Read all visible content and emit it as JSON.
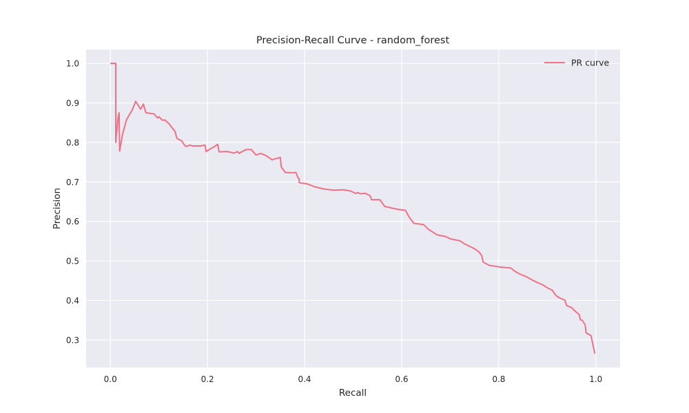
{
  "chart_data": {
    "type": "line",
    "title": "Precision-Recall Curve - random_forest",
    "xlabel": "Recall",
    "ylabel": "Precision",
    "xlim": [
      -0.05,
      1.05
    ],
    "ylim": [
      0.23,
      1.035
    ],
    "xticks": [
      0.0,
      0.2,
      0.4,
      0.6,
      0.8,
      1.0
    ],
    "xtick_labels": [
      "0.0",
      "0.2",
      "0.4",
      "0.6",
      "0.8",
      "1.0"
    ],
    "yticks": [
      0.3,
      0.4,
      0.5,
      0.6,
      0.7,
      0.8,
      0.9,
      1.0
    ],
    "ytick_labels": [
      "0.3",
      "0.4",
      "0.5",
      "0.6",
      "0.7",
      "0.8",
      "0.9",
      "1.0"
    ],
    "grid": true,
    "legend_position": "top-right",
    "colors": {
      "background": "#eaeaf2",
      "grid": "#ffffff",
      "line": "#f07085"
    },
    "series": [
      {
        "name": "PR curve",
        "color": "#f07085",
        "points": [
          [
            0.0,
            1.0
          ],
          [
            0.011,
            1.0
          ],
          [
            0.011,
            0.8
          ],
          [
            0.016,
            0.865
          ],
          [
            0.018,
            0.875
          ],
          [
            0.019,
            0.778
          ],
          [
            0.025,
            0.82
          ],
          [
            0.033,
            0.857
          ],
          [
            0.04,
            0.872
          ],
          [
            0.045,
            0.882
          ],
          [
            0.052,
            0.904
          ],
          [
            0.058,
            0.893
          ],
          [
            0.062,
            0.884
          ],
          [
            0.068,
            0.897
          ],
          [
            0.073,
            0.875
          ],
          [
            0.09,
            0.872
          ],
          [
            0.097,
            0.862
          ],
          [
            0.1,
            0.865
          ],
          [
            0.107,
            0.856
          ],
          [
            0.112,
            0.857
          ],
          [
            0.12,
            0.848
          ],
          [
            0.133,
            0.828
          ],
          [
            0.137,
            0.81
          ],
          [
            0.147,
            0.804
          ],
          [
            0.153,
            0.792
          ],
          [
            0.158,
            0.79
          ],
          [
            0.163,
            0.793
          ],
          [
            0.17,
            0.791
          ],
          [
            0.185,
            0.791
          ],
          [
            0.195,
            0.793
          ],
          [
            0.197,
            0.777
          ],
          [
            0.206,
            0.784
          ],
          [
            0.215,
            0.79
          ],
          [
            0.221,
            0.795
          ],
          [
            0.224,
            0.776
          ],
          [
            0.24,
            0.777
          ],
          [
            0.255,
            0.773
          ],
          [
            0.262,
            0.777
          ],
          [
            0.265,
            0.772
          ],
          [
            0.27,
            0.776
          ],
          [
            0.28,
            0.782
          ],
          [
            0.29,
            0.782
          ],
          [
            0.3,
            0.768
          ],
          [
            0.31,
            0.772
          ],
          [
            0.32,
            0.767
          ],
          [
            0.333,
            0.756
          ],
          [
            0.35,
            0.762
          ],
          [
            0.352,
            0.738
          ],
          [
            0.36,
            0.724
          ],
          [
            0.375,
            0.723
          ],
          [
            0.382,
            0.724
          ],
          [
            0.387,
            0.709
          ],
          [
            0.389,
            0.708
          ],
          [
            0.389,
            0.698
          ],
          [
            0.405,
            0.695
          ],
          [
            0.42,
            0.688
          ],
          [
            0.44,
            0.682
          ],
          [
            0.46,
            0.679
          ],
          [
            0.48,
            0.68
          ],
          [
            0.495,
            0.677
          ],
          [
            0.505,
            0.671
          ],
          [
            0.51,
            0.673
          ],
          [
            0.515,
            0.67
          ],
          [
            0.525,
            0.671
          ],
          [
            0.535,
            0.665
          ],
          [
            0.538,
            0.655
          ],
          [
            0.555,
            0.655
          ],
          [
            0.565,
            0.638
          ],
          [
            0.59,
            0.631
          ],
          [
            0.608,
            0.628
          ],
          [
            0.615,
            0.612
          ],
          [
            0.625,
            0.595
          ],
          [
            0.645,
            0.592
          ],
          [
            0.655,
            0.58
          ],
          [
            0.673,
            0.566
          ],
          [
            0.69,
            0.562
          ],
          [
            0.7,
            0.556
          ],
          [
            0.72,
            0.551
          ],
          [
            0.73,
            0.543
          ],
          [
            0.75,
            0.531
          ],
          [
            0.76,
            0.522
          ],
          [
            0.765,
            0.513
          ],
          [
            0.768,
            0.497
          ],
          [
            0.78,
            0.489
          ],
          [
            0.8,
            0.485
          ],
          [
            0.825,
            0.482
          ],
          [
            0.833,
            0.474
          ],
          [
            0.843,
            0.467
          ],
          [
            0.857,
            0.46
          ],
          [
            0.87,
            0.451
          ],
          [
            0.88,
            0.445
          ],
          [
            0.89,
            0.44
          ],
          [
            0.9,
            0.432
          ],
          [
            0.91,
            0.426
          ],
          [
            0.918,
            0.412
          ],
          [
            0.926,
            0.406
          ],
          [
            0.936,
            0.401
          ],
          [
            0.94,
            0.387
          ],
          [
            0.95,
            0.382
          ],
          [
            0.958,
            0.372
          ],
          [
            0.966,
            0.364
          ],
          [
            0.968,
            0.351
          ],
          [
            0.972,
            0.35
          ],
          [
            0.978,
            0.338
          ],
          [
            0.98,
            0.318
          ],
          [
            0.99,
            0.311
          ],
          [
            0.998,
            0.265
          ]
        ]
      }
    ]
  }
}
